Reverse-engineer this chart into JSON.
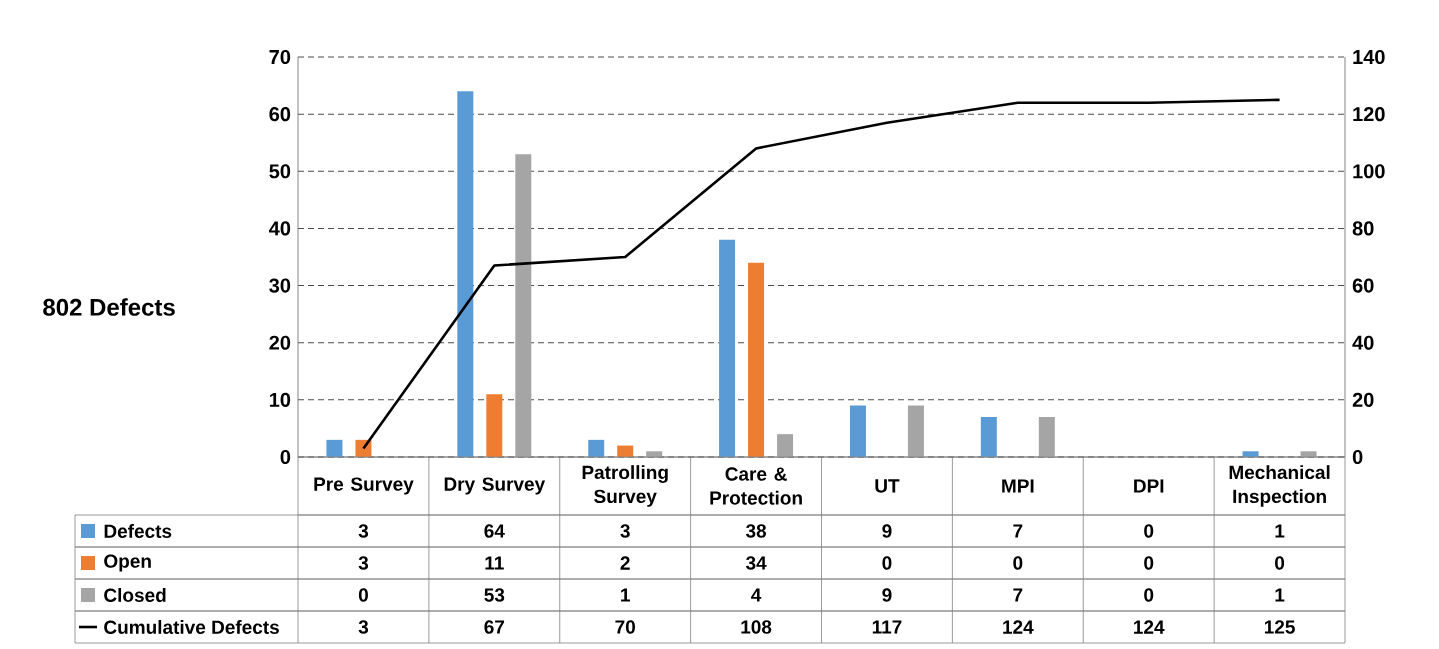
{
  "chart_data": {
    "type": "bar",
    "ylabel": "802 Defects",
    "categories": [
      "Pre Survey",
      "Dry Survey",
      "Patrolling Survey",
      "Care & Protection",
      "UT",
      "MPI",
      "DPI",
      "Mechanical Inspection"
    ],
    "series": [
      {
        "name": "Defects",
        "color": "#5b9bd5",
        "values": [
          3,
          64,
          3,
          38,
          9,
          7,
          0,
          1
        ]
      },
      {
        "name": "Open",
        "color": "#ed7d31",
        "values": [
          3,
          11,
          2,
          34,
          0,
          0,
          0,
          0
        ]
      },
      {
        "name": "Closed",
        "color": "#a5a5a5",
        "values": [
          0,
          53,
          1,
          4,
          9,
          7,
          0,
          1
        ]
      },
      {
        "name": "Cumulative Defects",
        "type": "line",
        "axis": "y2",
        "color": "#000000",
        "values": [
          3,
          67,
          70,
          108,
          117,
          124,
          124,
          125
        ]
      }
    ],
    "ylim": [
      0,
      70
    ],
    "yticks": [
      0,
      10,
      20,
      30,
      40,
      50,
      60,
      70
    ],
    "y2lim": [
      0,
      140
    ],
    "y2ticks": [
      0,
      20,
      40,
      60,
      80,
      100,
      120,
      140
    ],
    "grid": "y",
    "data_labels": true,
    "legend": "bottom left"
  }
}
